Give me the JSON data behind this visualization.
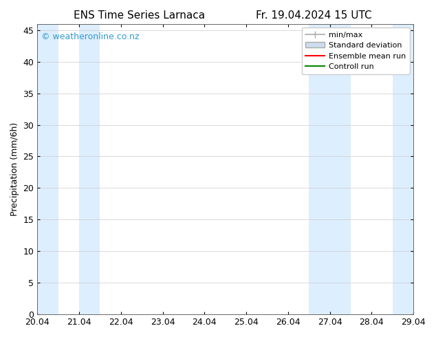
{
  "title_left": "ENS Time Series Larnaca",
  "title_right": "Fr. 19.04.2024 15 UTC",
  "ylabel": "Precipitation (mm/6h)",
  "ylim": [
    0,
    46
  ],
  "yticks": [
    0,
    5,
    10,
    15,
    20,
    25,
    30,
    35,
    40,
    45
  ],
  "xlim": [
    0,
    9
  ],
  "xtick_labels": [
    "20.04",
    "21.04",
    "22.04",
    "23.04",
    "24.04",
    "25.04",
    "26.04",
    "27.04",
    "28.04",
    "29.04"
  ],
  "xtick_positions": [
    0,
    1,
    2,
    3,
    4,
    5,
    6,
    7,
    8,
    9
  ],
  "shade_bands": [
    [
      0.0,
      0.5
    ],
    [
      1.0,
      1.5
    ],
    [
      6.5,
      7.0
    ],
    [
      7.0,
      7.5
    ],
    [
      8.5,
      9.0
    ]
  ],
  "band_color": "#ddeeff",
  "background_color": "#ffffff",
  "plot_bg_color": "#ffffff",
  "copyright_text": "© weatheronline.co.nz",
  "copyright_color": "#3399cc",
  "legend_labels": [
    "min/max",
    "Standard deviation",
    "Ensemble mean run",
    "Controll run"
  ],
  "font_size_title": 11,
  "font_size_tick": 9,
  "font_size_ylabel": 9,
  "font_size_legend": 8,
  "font_size_copyright": 9
}
